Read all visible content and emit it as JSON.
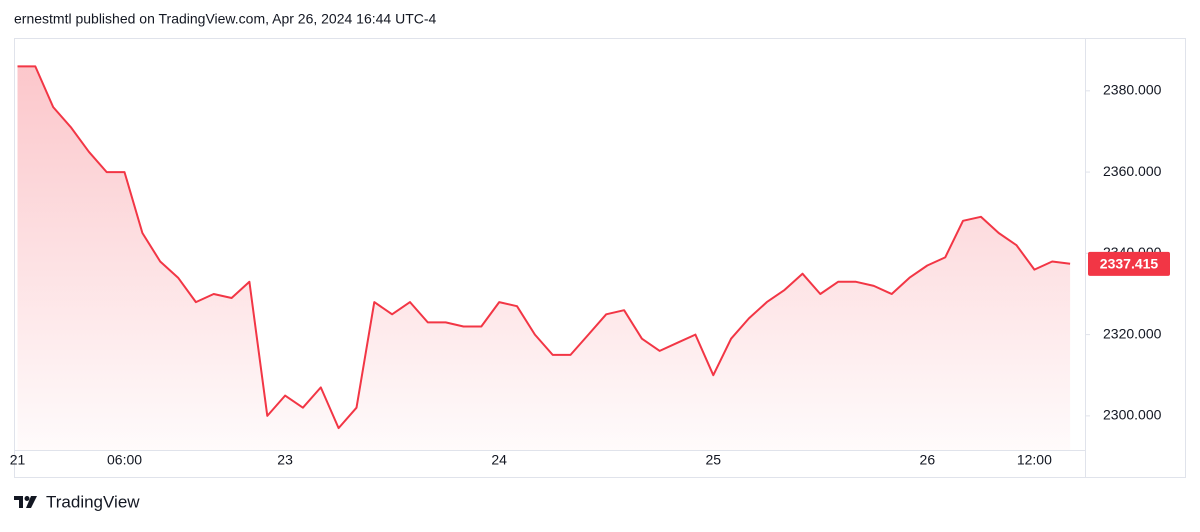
{
  "chart_data": {
    "type": "line",
    "title": "ernestmtl published on TradingView.com, Apr 26, 2024 16:44 UTC-4",
    "source": "TradingView",
    "color": "#f23645",
    "categories": [
      "21",
      null,
      null,
      null,
      null,
      null,
      "06:00",
      null,
      null,
      null,
      null,
      null,
      null,
      null,
      null,
      "23",
      null,
      null,
      null,
      null,
      null,
      null,
      null,
      null,
      null,
      null,
      null,
      "24",
      null,
      null,
      null,
      null,
      null,
      null,
      null,
      null,
      null,
      null,
      null,
      "25",
      null,
      null,
      null,
      null,
      null,
      null,
      null,
      null,
      null,
      null,
      null,
      "26",
      null,
      null,
      null,
      null,
      null,
      "12:00",
      null,
      null
    ],
    "values": [
      2386,
      2386,
      2376,
      2371,
      2365,
      2360,
      2360,
      2345,
      2338,
      2334,
      2328,
      2330,
      2329,
      2333,
      2300,
      2305,
      2302,
      2307,
      2297,
      2302,
      2328,
      2325,
      2328,
      2323,
      2323,
      2322,
      2322,
      2328,
      2327,
      2320,
      2315,
      2315,
      2320,
      2325,
      2326,
      2319,
      2316,
      2318,
      2320,
      2310,
      2319,
      2324,
      2328,
      2331,
      2335,
      2330,
      2333,
      2333,
      2332,
      2330,
      2334,
      2337,
      2339,
      2348,
      2349,
      2345,
      2342,
      2336,
      2338,
      2337.415
    ],
    "ylim": [
      2291.6,
      2393.0
    ],
    "yticks": [
      {
        "value": 2300,
        "label": "2300.000"
      },
      {
        "value": 2320,
        "label": "2320.000"
      },
      {
        "value": 2340,
        "label": "2340.000"
      },
      {
        "value": 2360,
        "label": "2360.000"
      },
      {
        "value": 2380,
        "label": "2380.000"
      }
    ]
  }
}
